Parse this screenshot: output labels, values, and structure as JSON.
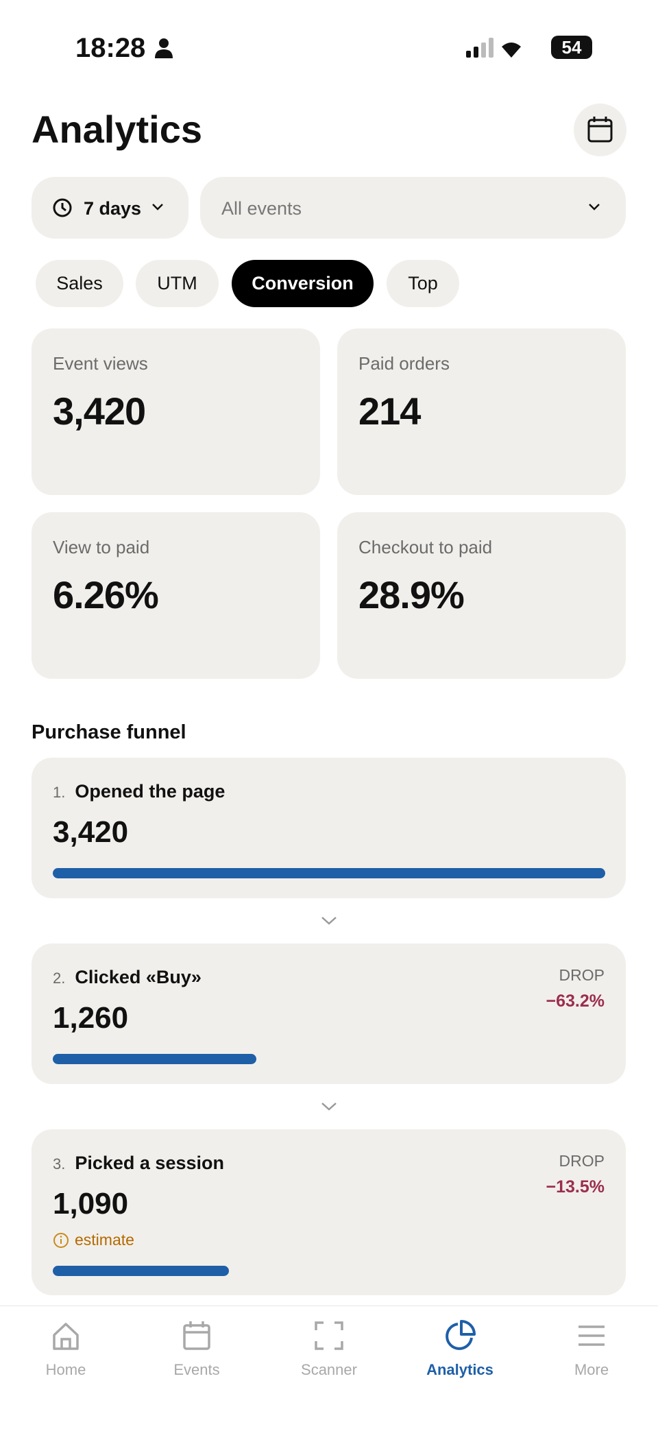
{
  "status_bar": {
    "time": "18:28",
    "battery": "54"
  },
  "header": {
    "title": "Analytics"
  },
  "filters": {
    "period": "7 days",
    "event": "All events"
  },
  "tabs": [
    {
      "label": "Sales",
      "active": false
    },
    {
      "label": "UTM",
      "active": false
    },
    {
      "label": "Conversion",
      "active": true
    },
    {
      "label": "Top",
      "active": false
    }
  ],
  "metrics": [
    {
      "label": "Event views",
      "value": "3,420"
    },
    {
      "label": "Paid orders",
      "value": "214"
    },
    {
      "label": "View to paid",
      "value": "6.26%"
    },
    {
      "label": "Checkout to paid",
      "value": "28.9%"
    }
  ],
  "funnel": {
    "title": "Purchase funnel",
    "steps": [
      {
        "number": "1.",
        "label": "Opened the page",
        "count": {
          "value": 3420,
          "label": "3,420"
        }
      },
      {
        "number": "2.",
        "label": "Clicked «Buy»",
        "count": {
          "value": 1260,
          "label": "1,260"
        },
        "drop_label": "DROP",
        "drop": "−63.2%"
      },
      {
        "number": "3.",
        "label": "Picked a session",
        "count": {
          "value": 1090,
          "label": "1,090"
        },
        "drop_label": "DROP",
        "drop": "−13.5%",
        "note": "estimate"
      }
    ]
  },
  "nav": [
    {
      "label": "Home",
      "active": false
    },
    {
      "label": "Events",
      "active": false
    },
    {
      "label": "Scanner",
      "active": false
    },
    {
      "label": "Analytics",
      "active": true
    },
    {
      "label": "More",
      "active": false
    }
  ]
}
